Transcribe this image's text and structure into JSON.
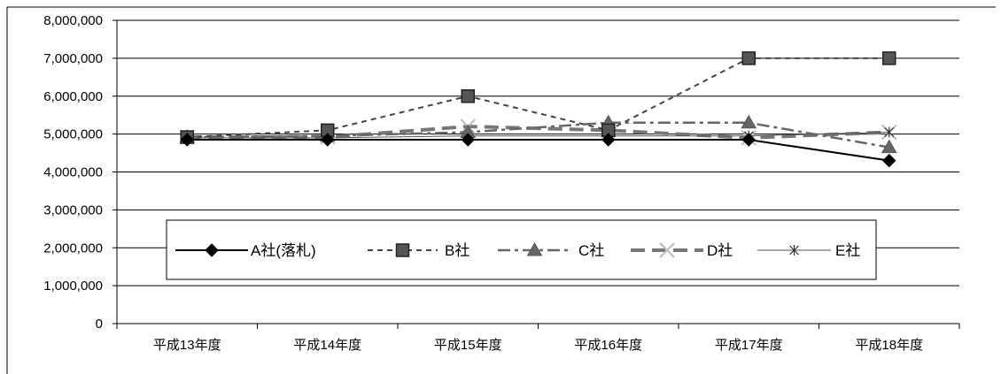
{
  "chart_data": {
    "type": "line",
    "title": "",
    "xlabel": "",
    "ylabel": "",
    "categories": [
      "平成13年度",
      "平成14年度",
      "平成15年度",
      "平成16年度",
      "平成17年度",
      "平成18年度"
    ],
    "y_ticks": [
      "0",
      "1,000,000",
      "2,000,000",
      "3,000,000",
      "4,000,000",
      "5,000,000",
      "6,000,000",
      "7,000,000",
      "8,000,000"
    ],
    "ylim": [
      0,
      8000000
    ],
    "grid": "horizontal",
    "legend_position": "inside-bottom",
    "series": [
      {
        "name": "A社(落札)",
        "values": [
          4850000,
          4850000,
          4850000,
          4850000,
          4850000,
          4300000
        ],
        "color": "#000000",
        "dash": "solid",
        "marker": "diamond",
        "width": 2
      },
      {
        "name": "B社",
        "values": [
          4920000,
          5100000,
          6000000,
          5100000,
          7000000,
          7000000
        ],
        "color": "#444444",
        "dash": "short",
        "marker": "square",
        "width": 2
      },
      {
        "name": "C社",
        "values": [
          4920000,
          4950000,
          5050000,
          5300000,
          5300000,
          4650000
        ],
        "color": "#666666",
        "dash": "dashdot",
        "marker": "triangle",
        "width": 2.5
      },
      {
        "name": "D社",
        "values": [
          4920000,
          4920000,
          5200000,
          5100000,
          4900000,
          5050000
        ],
        "color": "#777777",
        "dash": "long",
        "marker": "x",
        "width": 4
      },
      {
        "name": "E社",
        "values": [
          4900000,
          4900000,
          4950000,
          4950000,
          4950000,
          5050000
        ],
        "color": "#555555",
        "dash": "solid",
        "marker": "asterisk",
        "width": 1
      }
    ]
  }
}
